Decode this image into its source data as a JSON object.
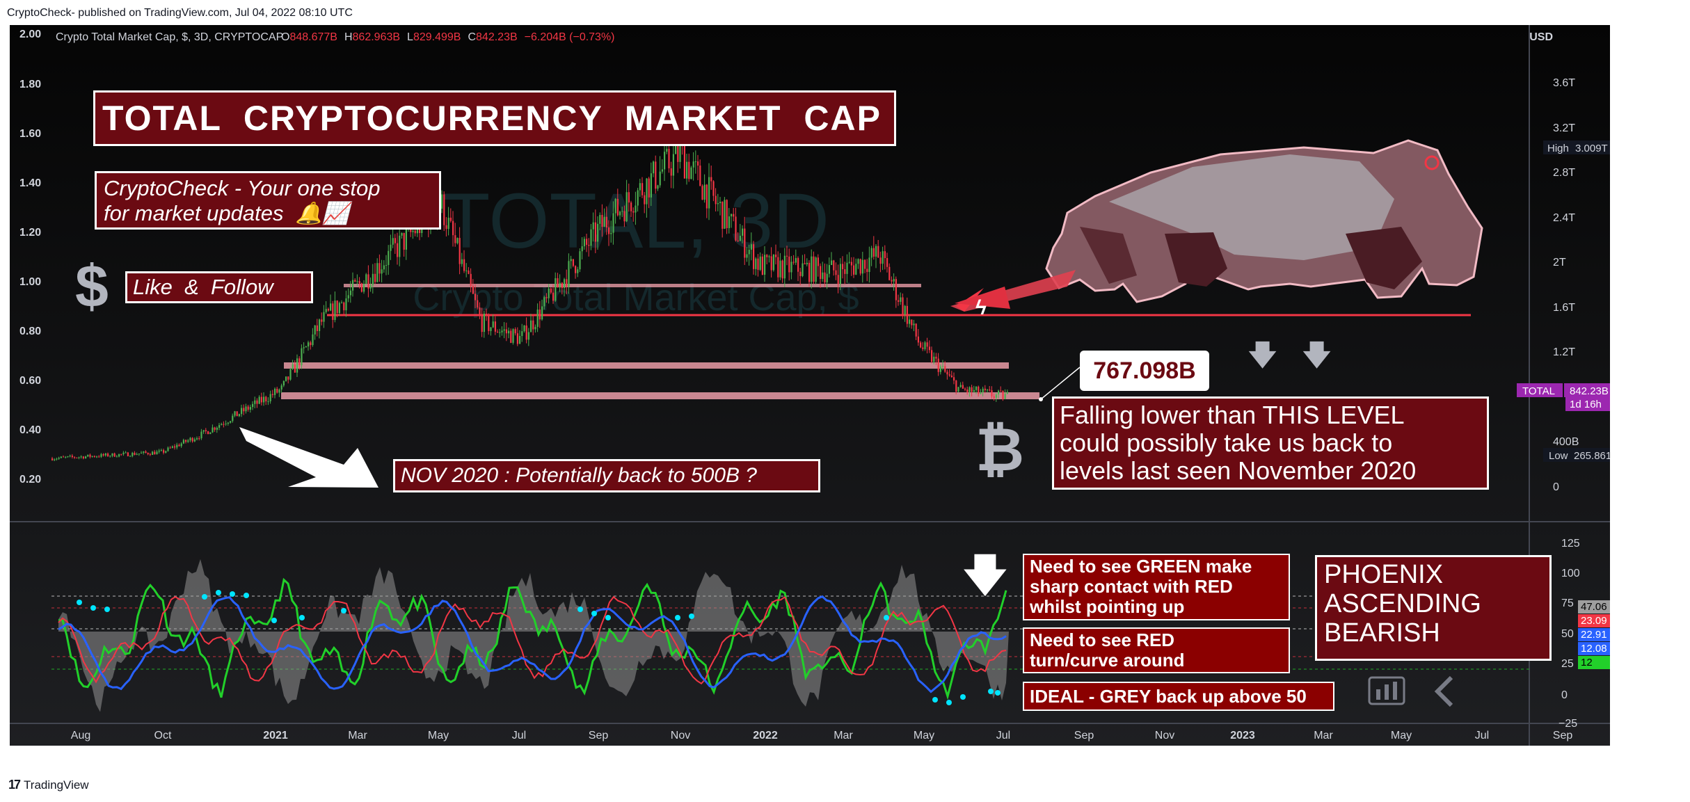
{
  "header": {
    "published": "CryptoCheck- published on TradingView.com, Jul 04, 2022 08:10 UTC"
  },
  "footer": {
    "brand": "TradingView"
  },
  "symbol_line": {
    "name": "Crypto Total Market Cap, $, 3D, CRYPTOCAP",
    "o_label": "O",
    "o": "848.677B",
    "h_label": "H",
    "h": "862.963B",
    "l_label": "L",
    "l": "829.499B",
    "c_label": "C",
    "c": "842.23B",
    "chg": "−6.204B (−0.73%)"
  },
  "watermark": {
    "line1": "TOTAL, 3D",
    "line2": "Crypto Total Market Cap, $"
  },
  "annotations": {
    "title": "TOTAL  CRYPTOCURRENCY  MARKET  CAP",
    "tagline1": "CryptoCheck - Your one stop",
    "tagline2": "for market updates  🔔📈",
    "dollar": "$",
    "follow": "Like  &  Follow",
    "nov2020": "NOV 2020 : Potentially back to 500B ?",
    "level_value": "767.098B",
    "falling1": "Falling lower than THIS LEVEL",
    "falling2": "could possibly take us back to",
    "falling3": "levels last seen November 2020",
    "bitcoin": "₿",
    "green_note1": "Need to see GREEN make",
    "green_note2": "sharp contact with RED",
    "green_note3": "whilst pointing up",
    "red_note1": "Need to see RED",
    "red_note2": "turn/curve around",
    "ideal": "IDEAL - GREY back up above 50",
    "phoenix1": "PHOENIX",
    "phoenix2": "ASCENDING",
    "phoenix3": "BEARISH"
  },
  "price_axis": {
    "currency": "USD",
    "labels": [
      "3.6T",
      "3.2T",
      "2.8T",
      "2.4T",
      "2T",
      "1.6T",
      "1.2T",
      "400B",
      "0"
    ],
    "high_label": "High",
    "high_value": "3.009T",
    "low_label": "Low",
    "low_value": "265.861B",
    "total_label": "TOTAL",
    "total_value": "842.23B",
    "countdown": "1d 16h"
  },
  "left_axis": {
    "labels": [
      "2.00",
      "1.80",
      "1.60",
      "1.40",
      "1.20",
      "1.00",
      "0.80",
      "0.60",
      "0.40",
      "0.20"
    ]
  },
  "osc_axis": {
    "labels": [
      "125",
      "100",
      "75",
      "50",
      "25",
      "0",
      "−25"
    ],
    "badges": [
      {
        "value": "47.06",
        "bg": "#9e9e9e",
        "fg": "#000000"
      },
      {
        "value": "23.09",
        "bg": "#f23645",
        "fg": "#ffffff"
      },
      {
        "value": "22.91",
        "bg": "#2962ff",
        "fg": "#ffffff"
      },
      {
        "value": "12.08",
        "bg": "#2962ff",
        "fg": "#ffffff"
      },
      {
        "value": "12",
        "bg": "#22d02a",
        "fg": "#000000"
      }
    ]
  },
  "time_axis": {
    "labels": [
      "Aug",
      "Oct",
      "2021",
      "Mar",
      "May",
      "Jul",
      "Sep",
      "Nov",
      "2022",
      "Mar",
      "May",
      "Jul",
      "Sep",
      "Nov",
      "2023",
      "Mar",
      "May",
      "Jul",
      "Sep"
    ]
  },
  "colors": {
    "up": "#4caf50",
    "down": "#f23645",
    "support": "#f23645",
    "zone": "#f8a5b0",
    "panel_bg": "#6b0000",
    "osc_green": "#22d02a",
    "osc_red": "#f23645",
    "osc_blue": "#2962ff",
    "osc_cyan": "#00e5ff"
  },
  "chart_data": {
    "type": "candlestick",
    "title": "Crypto Total Market Cap, $, 3D, CRYPTOCAP",
    "ylabel": "USD",
    "x_range": [
      "2020-07",
      "2022-07"
    ],
    "approx_close_usd_trillions": [
      {
        "date": "2020-07",
        "value": 0.28
      },
      {
        "date": "2020-10",
        "value": 0.34
      },
      {
        "date": "2020-11",
        "value": 0.5
      },
      {
        "date": "2021-01",
        "value": 0.9
      },
      {
        "date": "2021-02",
        "value": 1.5
      },
      {
        "date": "2021-04",
        "value": 2.2
      },
      {
        "date": "2021-05",
        "value": 2.55
      },
      {
        "date": "2021-06",
        "value": 1.5
      },
      {
        "date": "2021-07",
        "value": 1.35
      },
      {
        "date": "2021-09",
        "value": 2.35
      },
      {
        "date": "2021-11",
        "value": 3.0
      },
      {
        "date": "2022-01",
        "value": 2.0
      },
      {
        "date": "2022-03",
        "value": 1.95
      },
      {
        "date": "2022-04",
        "value": 2.1
      },
      {
        "date": "2022-05",
        "value": 1.3
      },
      {
        "date": "2022-06",
        "value": 0.9
      },
      {
        "date": "2022-07",
        "value": 0.84
      }
    ],
    "levels_usd": [
      1.95,
      1.7,
      1.28,
      0.767
    ],
    "oscillator": {
      "series": [
        "GREY",
        "GREEN",
        "RED",
        "BLUE"
      ],
      "last_values": [
        47.06,
        12,
        23.09,
        12.08
      ],
      "ylim": [
        -25,
        125
      ]
    }
  }
}
